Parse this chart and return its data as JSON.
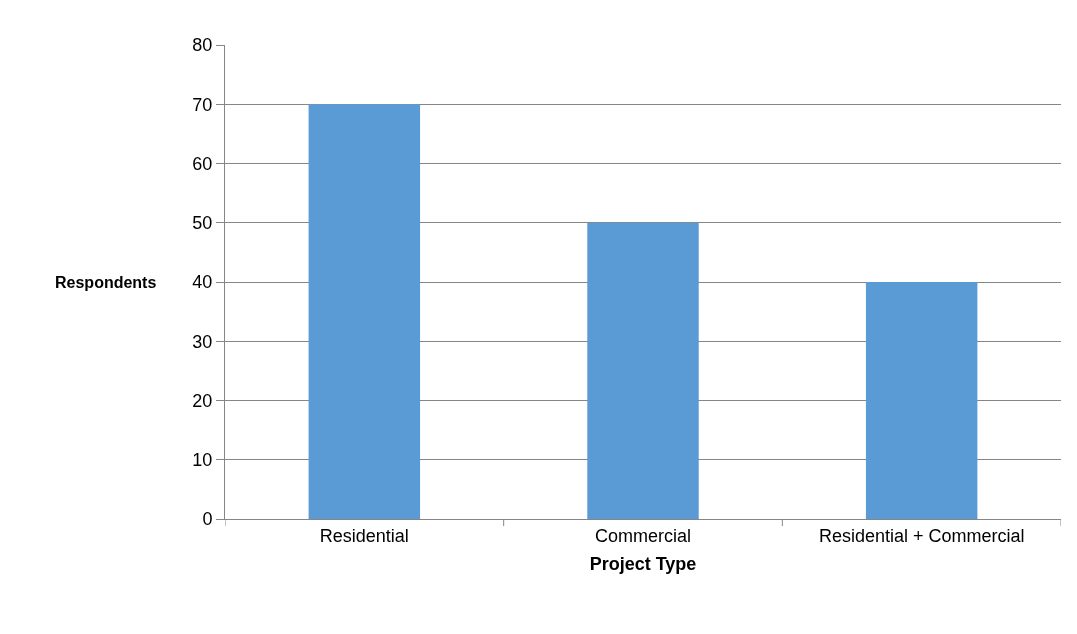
{
  "chart_data": {
    "type": "bar",
    "xlabel": "Project Type",
    "ylabel": "Respondents",
    "categories": [
      "Residential",
      "Commercial",
      "Residential + Commercial"
    ],
    "values": [
      70,
      50,
      40
    ],
    "color": "#5b9bd5",
    "ylim": [
      0,
      80
    ],
    "yticks": [
      0,
      10,
      20,
      30,
      40,
      50,
      60,
      70,
      80
    ],
    "grid": "y",
    "legend": false
  }
}
